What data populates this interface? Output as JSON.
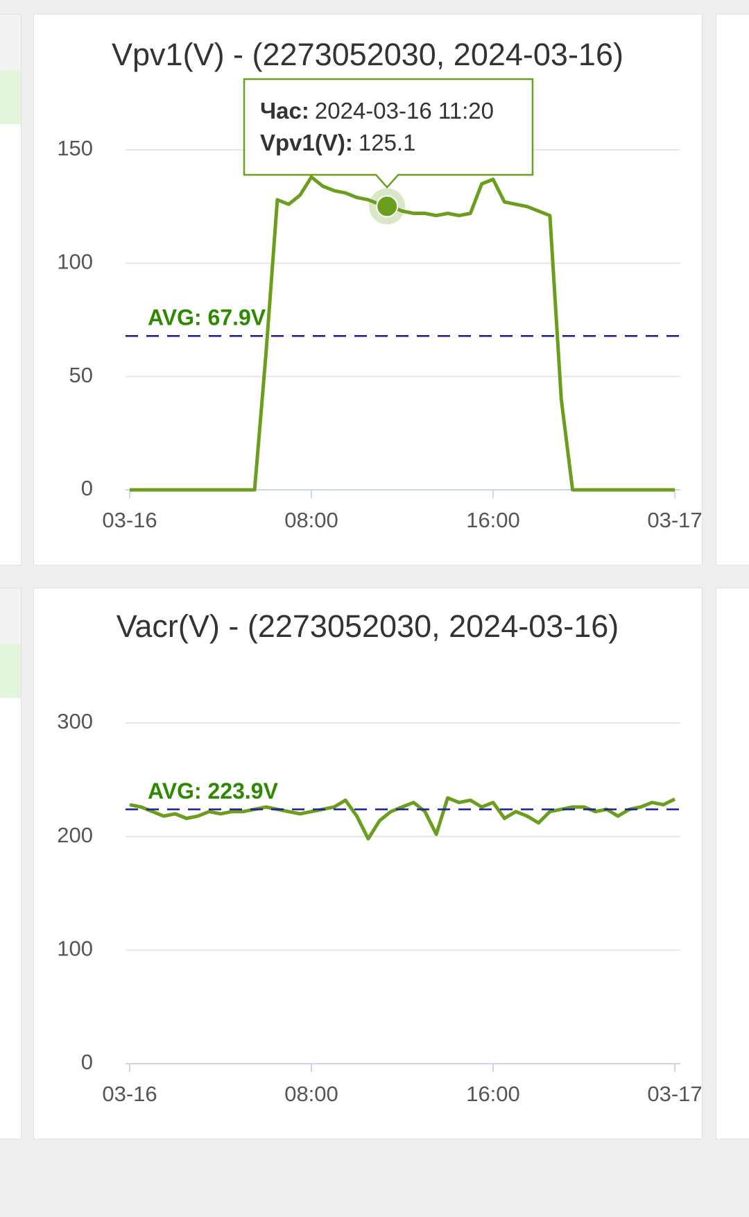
{
  "chart_data": [
    {
      "type": "line",
      "title": "Vpv1(V) - (2273052030, 2024-03-16)",
      "color": "#6b9e1e",
      "x": [
        0,
        0.5,
        1,
        1.5,
        2,
        2.5,
        3,
        3.5,
        4,
        4.5,
        5,
        5.5,
        6,
        6.5,
        7,
        7.5,
        8,
        8.5,
        9,
        9.5,
        10,
        10.5,
        11,
        11.5,
        12,
        12.5,
        13,
        13.5,
        14,
        14.5,
        15,
        15.5,
        16,
        16.5,
        17,
        17.5,
        18,
        18.5,
        19,
        19.5,
        20,
        20.5,
        21,
        21.5,
        22,
        22.5,
        23,
        23.5,
        24
      ],
      "values": [
        0,
        0,
        0,
        0,
        0,
        0,
        0,
        0,
        0,
        0,
        0,
        0,
        60,
        128,
        126,
        130,
        138,
        134,
        132,
        131,
        129,
        128,
        126,
        125,
        123,
        122,
        122,
        121,
        122,
        121,
        122,
        135,
        137,
        127,
        126,
        125,
        123,
        121,
        40,
        0,
        0,
        0,
        0,
        0,
        0,
        0,
        0,
        0,
        0
      ],
      "xlim": [
        0,
        24
      ],
      "xticks": [
        {
          "value": 0,
          "label": "03-16"
        },
        {
          "value": 8,
          "label": "08:00"
        },
        {
          "value": 16,
          "label": "16:00"
        },
        {
          "value": 24,
          "label": "03-17"
        }
      ],
      "ylim": [
        0,
        150
      ],
      "yticks": [
        0,
        50,
        100,
        150
      ],
      "grid": true,
      "avg": {
        "value": 67.9,
        "label": "AVG: 67.9V",
        "color": "#1a1a9c"
      },
      "tooltip": {
        "x": 11.333,
        "rows": [
          {
            "label": "Час:",
            "text": "2024-03-16 11:20"
          },
          {
            "label": "Vpv1(V):",
            "value": 125.1
          }
        ]
      }
    },
    {
      "type": "line",
      "title": "Vacr(V) - (2273052030, 2024-03-16)",
      "color": "#6b9e1e",
      "x": [
        0,
        0.5,
        1,
        1.5,
        2,
        2.5,
        3,
        3.5,
        4,
        4.5,
        5,
        5.5,
        6,
        6.5,
        7,
        7.5,
        8,
        8.5,
        9,
        9.5,
        10,
        10.5,
        11,
        11.5,
        12,
        12.5,
        13,
        13.5,
        14,
        14.5,
        15,
        15.5,
        16,
        16.5,
        17,
        17.5,
        18,
        18.5,
        19,
        19.5,
        20,
        20.5,
        21,
        21.5,
        22,
        22.5,
        23,
        23.5,
        24
      ],
      "values": [
        228,
        226,
        222,
        218,
        220,
        216,
        218,
        222,
        220,
        222,
        222,
        224,
        226,
        224,
        222,
        220,
        222,
        224,
        226,
        232,
        218,
        198,
        214,
        222,
        226,
        230,
        222,
        202,
        234,
        230,
        232,
        226,
        230,
        216,
        222,
        218,
        212,
        222,
        224,
        226,
        226,
        222,
        224,
        218,
        224,
        226,
        230,
        228,
        233
      ],
      "xlim": [
        0,
        24
      ],
      "xticks": [
        {
          "value": 0,
          "label": "03-16"
        },
        {
          "value": 8,
          "label": "08:00"
        },
        {
          "value": 16,
          "label": "16:00"
        },
        {
          "value": 24,
          "label": "03-17"
        }
      ],
      "ylim": [
        0,
        300
      ],
      "yticks": [
        0,
        100,
        200,
        300
      ],
      "grid": true,
      "avg": {
        "value": 223.9,
        "label": "AVG: 223.9V",
        "color": "#1a1a9c"
      }
    }
  ]
}
